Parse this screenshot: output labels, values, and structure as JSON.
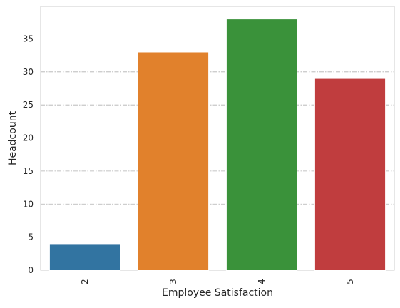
{
  "chart_data": {
    "type": "bar",
    "title": "",
    "xlabel": "Employee Satisfaction",
    "ylabel": "Headcount",
    "categories": [
      "2",
      "3",
      "4",
      "5"
    ],
    "values": [
      4,
      33,
      38,
      29
    ],
    "ylim": [
      0,
      39.9
    ],
    "yticks": [
      0,
      5,
      10,
      15,
      20,
      25,
      30,
      35
    ],
    "colors": [
      "#3274a1",
      "#e1812c",
      "#3a923a",
      "#c03d3e"
    ],
    "grid": "y-axis, dash-dot",
    "legend": "none"
  }
}
